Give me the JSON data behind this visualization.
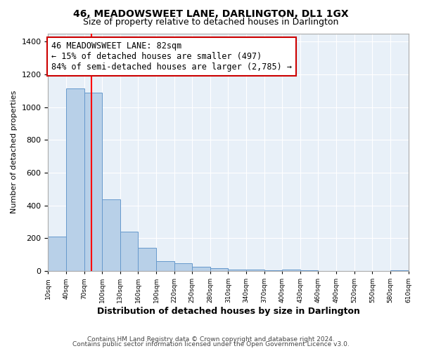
{
  "title": "46, MEADOWSWEET LANE, DARLINGTON, DL1 1GX",
  "subtitle": "Size of property relative to detached houses in Darlington",
  "xlabel": "Distribution of detached houses by size in Darlington",
  "ylabel": "Number of detached properties",
  "footer_lines": [
    "Contains HM Land Registry data © Crown copyright and database right 2024.",
    "Contains public sector information licensed under the Open Government Licence v3.0."
  ],
  "bin_edges": [
    10,
    40,
    70,
    100,
    130,
    160,
    190,
    220,
    250,
    280,
    310,
    340,
    370,
    400,
    430,
    460,
    490,
    520,
    550,
    580,
    610
  ],
  "counts": [
    210,
    1115,
    1090,
    435,
    240,
    140,
    60,
    48,
    25,
    18,
    10,
    8,
    5,
    8,
    5,
    0,
    0,
    0,
    0,
    5
  ],
  "bar_color": "#b8d0e8",
  "bar_edge_color": "#6699cc",
  "red_line_x": 82,
  "annotation_title": "46 MEADOWSWEET LANE: 82sqm",
  "annotation_line1": "← 15% of detached houses are smaller (497)",
  "annotation_line2": "84% of semi-detached houses are larger (2,785) →",
  "annotation_box_edge_color": "#cc0000",
  "ylim": [
    0,
    1450
  ],
  "yticks": [
    0,
    200,
    400,
    600,
    800,
    1000,
    1200,
    1400
  ],
  "xtick_labels": [
    "10sqm",
    "40sqm",
    "70sqm",
    "100sqm",
    "130sqm",
    "160sqm",
    "190sqm",
    "220sqm",
    "250sqm",
    "280sqm",
    "310sqm",
    "340sqm",
    "370sqm",
    "400sqm",
    "430sqm",
    "460sqm",
    "490sqm",
    "520sqm",
    "550sqm",
    "580sqm",
    "610sqm"
  ],
  "bg_color": "#ffffff",
  "plot_bg_color": "#e8f0f8",
  "grid_color": "#ffffff",
  "title_fontsize": 10,
  "subtitle_fontsize": 9,
  "xlabel_fontsize": 9,
  "ylabel_fontsize": 8
}
